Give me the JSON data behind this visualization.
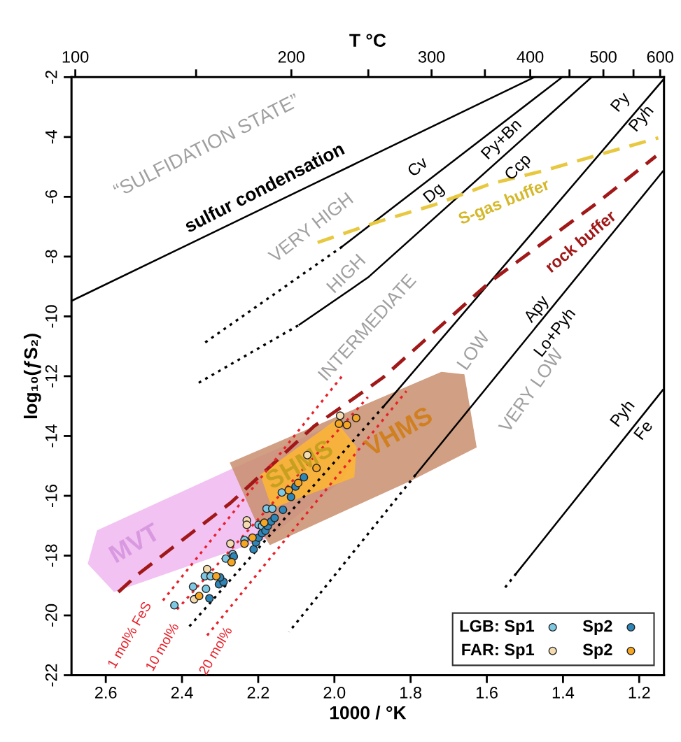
{
  "chart_data": {
    "type": "scatter",
    "xlabel": "1000 / °K",
    "ylabel": "log₁₀(ƒS₂)",
    "x2label": "T °C",
    "xlim": [
      2.69,
      1.135
    ],
    "ylim": [
      -22,
      -2
    ],
    "xticks": [
      {
        "value": 2.6,
        "label": "2.6"
      },
      {
        "value": 2.4,
        "label": "2.4"
      },
      {
        "value": 2.2,
        "label": "2.2"
      },
      {
        "value": 2.0,
        "label": "2.0"
      },
      {
        "value": 1.8,
        "label": "1.8"
      },
      {
        "value": 1.6,
        "label": "1.6"
      },
      {
        "value": 1.4,
        "label": "1.4"
      },
      {
        "value": 1.2,
        "label": "1.2"
      }
    ],
    "yticks": [
      -22,
      -20,
      -18,
      -16,
      -14,
      -12,
      -10,
      -8,
      -6,
      -4,
      -2
    ],
    "grid": false,
    "legend": "bottom right",
    "series": [
      {
        "type": "area",
        "color": "#f0b8f0",
        "x": [
          2.622,
          2.273,
          1.998,
          1.943,
          1.98,
          2.174,
          2.578,
          2.646
        ],
        "values": [
          -17.17,
          -15.14,
          -13.6,
          -14.6,
          -15.47,
          -17.4,
          -19.2,
          -18.27
        ]
      },
      {
        "type": "area",
        "color": "#c98f6e",
        "x": [
          2.273,
          1.719,
          1.66,
          1.628,
          1.798,
          2.169,
          2.2
        ],
        "values": [
          -14.9,
          -11.87,
          -11.95,
          -14.37,
          -15.47,
          -17.63,
          -17.0
        ]
      },
      {
        "type": "area",
        "color": "#ffb833",
        "x": [
          2.193,
          1.998,
          1.943,
          1.949,
          2.163
        ],
        "values": [
          -15.3,
          -13.5,
          -14.37,
          -15.37,
          -16.4
        ]
      },
      {
        "type": "line",
        "color": "#000000",
        "line_style": "solid",
        "x": [
          2.688,
          1.475
        ],
        "values": [
          -9.47,
          -2
        ]
      },
      {
        "type": "line",
        "color": "#000000",
        "line_style": "dotted",
        "x": [
          2.339,
          1.98
        ],
        "values": [
          -10.87,
          -7.67
        ]
      },
      {
        "type": "line",
        "color": "#000000",
        "line_style": "solid",
        "x": [
          1.98,
          1.402
        ],
        "values": [
          -7.67,
          -2
        ]
      },
      {
        "type": "line",
        "color": "#000000",
        "line_style": "dotted",
        "x": [
          2.356,
          2.092
        ],
        "values": [
          -12.22,
          -10.28
        ]
      },
      {
        "type": "line",
        "color": "#000000",
        "line_style": "solid",
        "x": [
          2.092,
          1.912,
          1.325
        ],
        "values": [
          -10.28,
          -8.7,
          -2
        ]
      },
      {
        "type": "line",
        "color": "#000000",
        "line_style": "solid",
        "x": [
          1.138,
          1.87
        ],
        "values": [
          -2.1,
          -13.0
        ]
      },
      {
        "type": "line",
        "color": "#000000",
        "line_style": "dotted",
        "x": [
          1.87,
          2.383
        ],
        "values": [
          -13.0,
          -20.4
        ]
      },
      {
        "type": "line",
        "color": "#000000",
        "line_style": "solid",
        "x": [
          1.138,
          1.787
        ],
        "values": [
          -5.15,
          -15.3
        ]
      },
      {
        "type": "line",
        "color": "#000000",
        "line_style": "dotted",
        "x": [
          1.787,
          2.119
        ],
        "values": [
          -15.3,
          -20.55
        ]
      },
      {
        "type": "line",
        "color": "#000000",
        "line_style": "solid",
        "x": [
          1.138,
          1.523
        ],
        "values": [
          -12.46,
          -18.6
        ]
      },
      {
        "type": "line",
        "color": "#000000",
        "line_style": "dotted",
        "x": [
          1.523,
          1.554
        ],
        "values": [
          -18.6,
          -19.1
        ]
      },
      {
        "type": "line",
        "color": "#e8c840",
        "line_style": "dashed",
        "x": [
          2.044,
          1.884,
          1.738,
          1.591,
          1.457,
          1.31,
          1.15
        ],
        "values": [
          -7.53,
          -6.83,
          -6.27,
          -5.57,
          -5.15,
          -4.61,
          -4.03
        ]
      },
      {
        "type": "line",
        "color": "#a01818",
        "line_style": "dashed",
        "x": [
          2.567,
          2.517,
          2.273,
          2.053,
          1.93,
          1.872,
          1.591,
          1.31,
          1.156
        ],
        "values": [
          -19.22,
          -18.64,
          -16.24,
          -13.67,
          -12.57,
          -12.04,
          -8.84,
          -6.2,
          -4.64
        ]
      },
      {
        "type": "line",
        "color": "#e8202a",
        "line_style": "dotted",
        "x": [
          2.45,
          1.98
        ],
        "values": [
          -19.5,
          -12.0
        ]
      },
      {
        "type": "line",
        "color": "#e8202a",
        "line_style": "dotted",
        "x": [
          2.413,
          1.912
        ],
        "values": [
          -19.8,
          -12.7
        ]
      },
      {
        "type": "line",
        "color": "#e8202a",
        "line_style": "dotted",
        "x": [
          2.334,
          1.811
        ],
        "values": [
          -20.67,
          -12.5
        ]
      },
      {
        "name": "LGB: Sp1",
        "marker": "circle",
        "color": "#7ec8e3",
        "x": [
          2.42,
          2.371,
          2.337,
          2.34,
          2.325,
          2.285,
          2.267,
          2.236,
          2.199,
          2.19,
          2.178,
          2.163,
          2.138
        ],
        "values": [
          -19.66,
          -19.04,
          -19.11,
          -18.69,
          -18.69,
          -18.1,
          -17.95,
          -17.48,
          -16.97,
          -17.01,
          -16.43,
          -16.43,
          -15.89
        ]
      },
      {
        "name": "FAR: Sp1",
        "marker": "circle",
        "color": "#f5dcb0",
        "x": [
          2.368,
          2.334,
          2.273,
          2.23,
          2.23,
          2.071,
          1.985
        ],
        "values": [
          -19.46,
          -18.45,
          -17.6,
          -16.82,
          -16.97,
          -14.64,
          -13.32
        ]
      },
      {
        "name": "Sp2",
        "marker": "circle",
        "color": "#2e86b8",
        "x": [
          2.328,
          2.303,
          2.291,
          2.3,
          2.264,
          2.212,
          2.206,
          2.199,
          2.19,
          2.181,
          2.175,
          2.166,
          2.157,
          2.135,
          2.114,
          2.102,
          2.08
        ],
        "values": [
          -19.43,
          -18.96,
          -18.88,
          -18.73,
          -18.03,
          -17.79,
          -17.56,
          -17.4,
          -17.25,
          -17.17,
          -17.01,
          -16.86,
          -16.74,
          -16.47,
          -16.04,
          -15.69,
          -15.38
        ]
      },
      {
        "name": "Sp2",
        "marker": "circle",
        "color": "#f5a623",
        "x": [
          2.355,
          2.31,
          2.27,
          2.236,
          2.215,
          2.184,
          2.12,
          2.095,
          2.047,
          1.988,
          1.967,
          1.943
        ],
        "values": [
          -19.35,
          -18.69,
          -18.22,
          -17.6,
          -17.4,
          -16.9,
          -15.81,
          -15.57,
          -15.07,
          -13.59,
          -13.63,
          -13.4
        ]
      }
    ],
    "annotations": [
      "“SULFIDATION STATE”",
      "sulfur condensation",
      "VERY HIGH",
      "HIGH",
      "INTERMEDIATE",
      "LOW",
      "VERY LOW",
      "Cv",
      "Dg",
      "Py+Bn",
      "Ccp",
      "Py",
      "Pyh",
      "S-gas buffer",
      "rock buffer",
      "Apy",
      "Lo+Pyh",
      "Pyh",
      "Fe",
      "1 mol% FeS",
      "10 mol%",
      "20 mol%",
      "MVT",
      {
        "text": "SHMS",
        "x": 2.09,
        "y": -15.0
      },
      "VHMS",
      "100",
      "200",
      "300",
      "400",
      "500",
      "600"
    ]
  }
}
